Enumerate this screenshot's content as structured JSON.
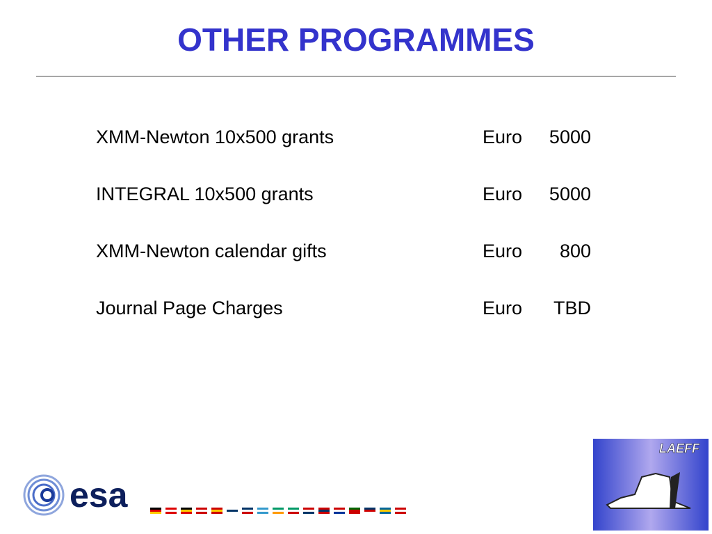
{
  "header": {
    "title": "OTHER PROGRAMMES"
  },
  "table": {
    "rows": [
      [
        "XMM-Newton 10x500 grants",
        "Euro",
        "5000"
      ],
      [
        "INTEGRAL 10x500 grants",
        "Euro",
        "5000"
      ],
      [
        "XMM-Newton calendar gifts",
        "Euro",
        "800"
      ],
      [
        "Journal Page Charges",
        "Euro",
        "TBD"
      ]
    ]
  },
  "logos": {
    "esa": "esa",
    "laeff": "LAEFF"
  }
}
